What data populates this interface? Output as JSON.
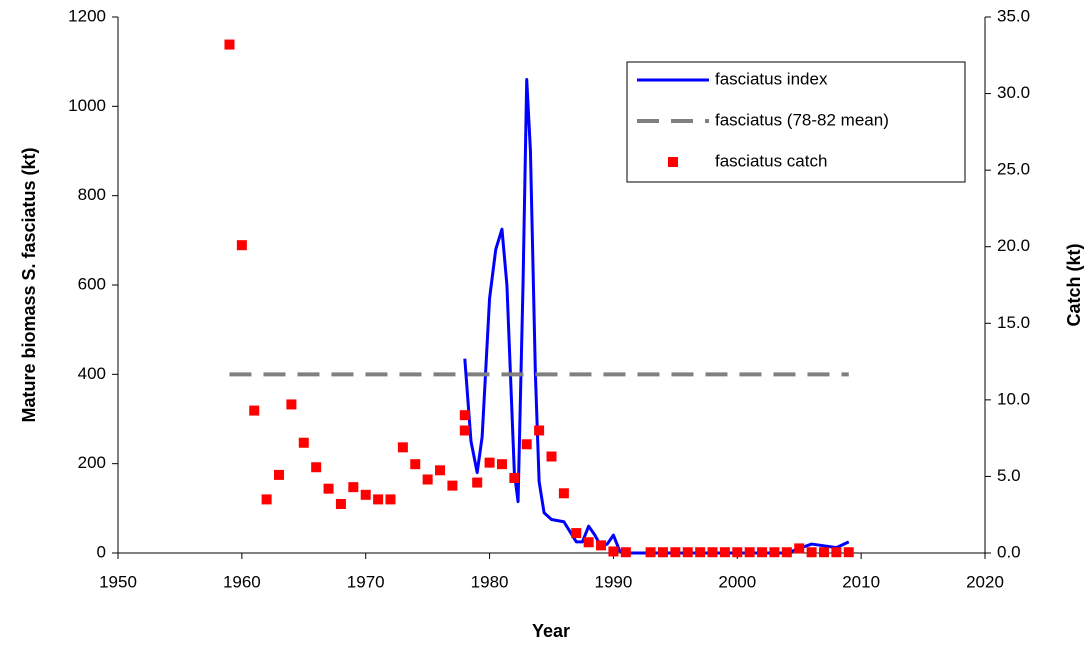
{
  "chart_data": {
    "type": "line",
    "x_label": "Year",
    "y_label": "Mature biomass S. fasciatus (kt)",
    "y2_label": "Catch (kt)",
    "xlim": [
      1950,
      2020
    ],
    "xticks": [
      1950,
      1960,
      1970,
      1980,
      1990,
      2000,
      2010,
      2020
    ],
    "ylim": [
      0,
      1200
    ],
    "yticks": [
      0,
      200,
      400,
      600,
      800,
      1000,
      1200
    ],
    "y2lim": [
      0,
      35
    ],
    "y2ticks": [
      {
        "value": 0,
        "label": "0.0"
      },
      {
        "value": 5,
        "label": "5.0"
      },
      {
        "value": 10,
        "label": "10.0"
      },
      {
        "value": 15,
        "label": "15.0"
      },
      {
        "value": 20,
        "label": "20.0"
      },
      {
        "value": 25,
        "label": "25.0"
      },
      {
        "value": 30,
        "label": "30.0"
      },
      {
        "value": 35,
        "label": "35.0"
      }
    ],
    "series": [
      {
        "name": "fasciatus index",
        "type": "line",
        "color": "#0000ff",
        "dash": false,
        "x": [
          1978,
          1978.5,
          1979,
          1979.4,
          1980,
          1980.5,
          1981,
          1981.4,
          1982,
          1982.3,
          1982.7,
          1983,
          1983.3,
          1983.7,
          1984,
          1984.4,
          1985,
          1986,
          1987,
          1987.5,
          1988,
          1988.5,
          1989,
          1989.5,
          1990,
          1990.5,
          1991,
          1995,
          2000,
          2004,
          2006,
          2008,
          2009
        ],
        "values": [
          435,
          250,
          180,
          260,
          570,
          680,
          725,
          600,
          180,
          115,
          600,
          1060,
          900,
          400,
          160,
          90,
          75,
          70,
          25,
          25,
          60,
          40,
          15,
          20,
          40,
          5,
          0,
          0,
          0,
          0,
          20,
          12,
          25
        ]
      },
      {
        "name": "fasciatus (78-82 mean)",
        "type": "line",
        "color": "#808080",
        "dash": true,
        "x": [
          1959,
          2009
        ],
        "values": [
          400,
          400
        ]
      },
      {
        "name": "fasciatus catch",
        "type": "scatter",
        "color": "#ff0000",
        "axis": "y2",
        "x": [
          1959,
          1960,
          1961,
          1962,
          1963,
          1964,
          1965,
          1966,
          1967,
          1968,
          1969,
          1970,
          1971,
          1972,
          1973,
          1974,
          1975,
          1976,
          1977,
          1978,
          1978,
          1979,
          1980,
          1981,
          1982,
          1983,
          1984,
          1985,
          1986,
          1987,
          1988,
          1989,
          1990,
          1991,
          1993,
          1994,
          1995,
          1996,
          1997,
          1998,
          1999,
          2000,
          2001,
          2002,
          2003,
          2004,
          2005,
          2006,
          2007,
          2008,
          2009
        ],
        "values": [
          33.2,
          20.1,
          9.3,
          3.5,
          5.1,
          9.7,
          7.2,
          5.6,
          4.2,
          3.2,
          4.3,
          3.8,
          3.5,
          3.5,
          6.9,
          5.8,
          4.8,
          5.4,
          4.4,
          9.0,
          8.0,
          4.6,
          5.9,
          5.8,
          4.9,
          7.1,
          8.0,
          6.3,
          3.9,
          1.3,
          0.7,
          0.5,
          0.1,
          0.05,
          0.05,
          0.05,
          0.05,
          0.05,
          0.05,
          0.05,
          0.05,
          0.05,
          0.05,
          0.05,
          0.05,
          0.05,
          0.3,
          0.05,
          0.05,
          0.05,
          0.05
        ]
      }
    ],
    "legend": "upper-right",
    "grid": false
  }
}
